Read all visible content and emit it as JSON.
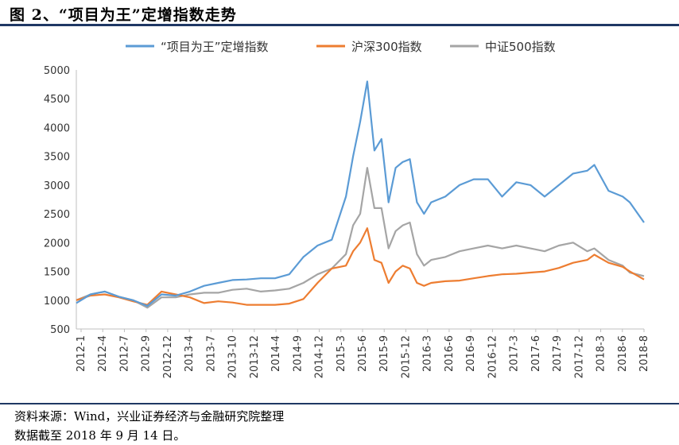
{
  "header": {
    "title": "图 2、“项目为王”定增指数走势"
  },
  "footer": {
    "source": "资料来源：Wind，兴业证券经济与金融研究院整理",
    "note": "数据截至 2018 年 9 月 14 日。"
  },
  "chart_data": {
    "type": "line",
    "title": "",
    "xlabel": "",
    "ylabel": "",
    "ylim": [
      500,
      5000
    ],
    "yticks": [
      500,
      1000,
      1500,
      2000,
      2500,
      3000,
      3500,
      4000,
      4500,
      5000
    ],
    "x_tick_labels": [
      "2012-1",
      "2012-4",
      "2012-7",
      "2012-9",
      "2012-12",
      "2013-4",
      "2013-7",
      "2013-10",
      "2013-12",
      "2014-4",
      "2014-9",
      "2014-12",
      "2015-3",
      "2015-6",
      "2015-9",
      "2015-12",
      "2016-3",
      "2016-6",
      "2016-9",
      "2016-12",
      "2017-3",
      "2017-6",
      "2017-9",
      "2017-12",
      "2018-3",
      "2018-6",
      "2018-8"
    ],
    "grid": false,
    "legend_position": "top",
    "x": [
      "2012-01",
      "2012-03",
      "2012-05",
      "2012-07",
      "2012-09",
      "2012-11",
      "2013-01",
      "2013-03",
      "2013-05",
      "2013-07",
      "2013-09",
      "2013-11",
      "2014-01",
      "2014-03",
      "2014-05",
      "2014-07",
      "2014-09",
      "2014-11",
      "2015-01",
      "2015-03",
      "2015-04",
      "2015-05",
      "2015-06",
      "2015-07",
      "2015-08",
      "2015-09",
      "2015-10",
      "2015-11",
      "2015-12",
      "2016-01",
      "2016-02",
      "2016-03",
      "2016-05",
      "2016-07",
      "2016-09",
      "2016-11",
      "2017-01",
      "2017-03",
      "2017-05",
      "2017-07",
      "2017-09",
      "2017-11",
      "2018-01",
      "2018-02",
      "2018-04",
      "2018-06",
      "2018-07",
      "2018-09"
    ],
    "series": [
      {
        "name": "“项目为王”定增指数",
        "color": "#5b9bd5",
        "values": [
          950,
          1100,
          1150,
          1060,
          1000,
          900,
          1100,
          1080,
          1150,
          1250,
          1300,
          1350,
          1360,
          1380,
          1380,
          1450,
          1750,
          1950,
          2050,
          2800,
          3500,
          4100,
          4800,
          3600,
          3800,
          2700,
          3300,
          3400,
          3450,
          2700,
          2500,
          2700,
          2800,
          3000,
          3100,
          3100,
          2800,
          3050,
          3000,
          2800,
          3000,
          3200,
          3250,
          3350,
          2900,
          2800,
          2700,
          2350
        ]
      },
      {
        "name": "沪深300指数",
        "color": "#ed7d31",
        "values": [
          1000,
          1080,
          1100,
          1050,
          980,
          920,
          1150,
          1100,
          1050,
          950,
          980,
          960,
          920,
          920,
          920,
          940,
          1020,
          1300,
          1550,
          1600,
          1850,
          2000,
          2250,
          1700,
          1650,
          1300,
          1500,
          1600,
          1550,
          1300,
          1250,
          1300,
          1330,
          1340,
          1380,
          1420,
          1450,
          1460,
          1480,
          1500,
          1560,
          1650,
          1700,
          1790,
          1650,
          1580,
          1500,
          1360
        ]
      },
      {
        "name": "中证500指数",
        "color": "#a5a5a5",
        "values": [
          1000,
          1100,
          1150,
          1060,
          1000,
          870,
          1050,
          1050,
          1100,
          1130,
          1130,
          1180,
          1200,
          1150,
          1170,
          1200,
          1300,
          1450,
          1550,
          1800,
          2300,
          2500,
          3300,
          2600,
          2600,
          1900,
          2200,
          2300,
          2350,
          1800,
          1600,
          1700,
          1750,
          1850,
          1900,
          1950,
          1900,
          1950,
          1900,
          1850,
          1950,
          2000,
          1850,
          1900,
          1700,
          1600,
          1480,
          1420
        ]
      }
    ]
  }
}
